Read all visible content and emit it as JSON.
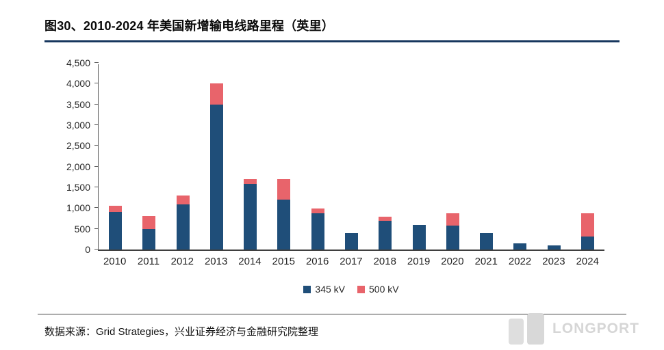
{
  "header": {
    "title": "图30、2010-2024 年美国新增输电线路里程（英里）"
  },
  "chart_data": {
    "type": "bar",
    "stacked": true,
    "title": "图30、2010-2024 年美国新增输电线路里程（英里）",
    "categories": [
      "2010",
      "2011",
      "2012",
      "2013",
      "2014",
      "2015",
      "2016",
      "2017",
      "2018",
      "2019",
      "2020",
      "2021",
      "2022",
      "2023",
      "2024"
    ],
    "series": [
      {
        "name": "345 kV",
        "color": "#1F4E79",
        "values": [
          900,
          500,
          1080,
          3500,
          1580,
          1200,
          870,
          390,
          690,
          590,
          570,
          390,
          150,
          100,
          310
        ]
      },
      {
        "name": "500 kV",
        "color": "#E8646B",
        "values": [
          150,
          300,
          220,
          500,
          120,
          500,
          120,
          0,
          100,
          0,
          310,
          0,
          0,
          0,
          560
        ]
      }
    ],
    "ylim": [
      0,
      4500
    ],
    "yticks": [
      0,
      500,
      1000,
      1500,
      2000,
      2500,
      3000,
      3500,
      4000,
      4500
    ],
    "ytick_labels": [
      "0",
      "500",
      "1,000",
      "1,500",
      "2,000",
      "2,500",
      "3,000",
      "3,500",
      "4,000",
      "4,500"
    ],
    "grid": false,
    "legend_position": "bottom"
  },
  "footer": {
    "source": "数据来源：Grid Strategies，兴业证券经济与金融研究院整理",
    "watermark": "LONGPORT"
  },
  "colors": {
    "title_rule": "#17375E",
    "axis": "#595959",
    "series_345kv": "#1F4E79",
    "series_500kv": "#E8646B"
  }
}
